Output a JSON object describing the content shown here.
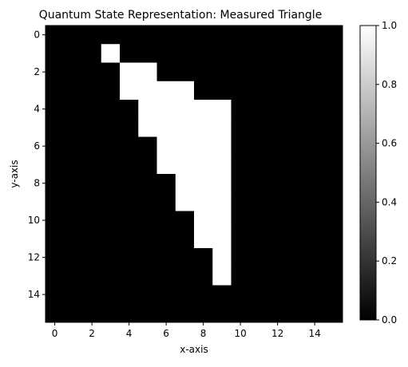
{
  "chart_data": {
    "type": "heatmap",
    "title": "Quantum State Representation: Measured Triangle",
    "xlabel": "x-axis",
    "ylabel": "y-axis",
    "colormap": "gray",
    "colors": {
      "low": "#000000",
      "high": "#ffffff"
    },
    "grid": false,
    "legend": "none",
    "rows": 16,
    "cols": 16,
    "xlim": [
      -0.5,
      15.5
    ],
    "ylim": [
      15.5,
      -0.5
    ],
    "x_ticks": [
      "0",
      "2",
      "4",
      "6",
      "8",
      "10",
      "12",
      "14"
    ],
    "y_ticks": [
      "0",
      "2",
      "4",
      "6",
      "8",
      "10",
      "12",
      "14"
    ],
    "colorbar": {
      "range": [
        0.0,
        1.0
      ],
      "ticks": [
        "0.0",
        "0.2",
        "0.4",
        "0.6",
        "0.8",
        "1.0"
      ]
    },
    "values": [
      [
        0,
        0,
        0,
        0,
        0,
        0,
        0,
        0,
        0,
        0,
        0,
        0,
        0,
        0,
        0,
        0
      ],
      [
        0,
        0,
        0,
        1,
        0,
        0,
        0,
        0,
        0,
        0,
        0,
        0,
        0,
        0,
        0,
        0
      ],
      [
        0,
        0,
        0,
        0,
        1,
        1,
        0,
        0,
        0,
        0,
        0,
        0,
        0,
        0,
        0,
        0
      ],
      [
        0,
        0,
        0,
        0,
        1,
        1,
        1,
        1,
        0,
        0,
        0,
        0,
        0,
        0,
        0,
        0
      ],
      [
        0,
        0,
        0,
        0,
        0,
        1,
        1,
        1,
        1,
        1,
        0,
        0,
        0,
        0,
        0,
        0
      ],
      [
        0,
        0,
        0,
        0,
        0,
        1,
        1,
        1,
        1,
        1,
        0,
        0,
        0,
        0,
        0,
        0
      ],
      [
        0,
        0,
        0,
        0,
        0,
        0,
        1,
        1,
        1,
        1,
        0,
        0,
        0,
        0,
        0,
        0
      ],
      [
        0,
        0,
        0,
        0,
        0,
        0,
        1,
        1,
        1,
        1,
        0,
        0,
        0,
        0,
        0,
        0
      ],
      [
        0,
        0,
        0,
        0,
        0,
        0,
        0,
        1,
        1,
        1,
        0,
        0,
        0,
        0,
        0,
        0
      ],
      [
        0,
        0,
        0,
        0,
        0,
        0,
        0,
        1,
        1,
        1,
        0,
        0,
        0,
        0,
        0,
        0
      ],
      [
        0,
        0,
        0,
        0,
        0,
        0,
        0,
        0,
        1,
        1,
        0,
        0,
        0,
        0,
        0,
        0
      ],
      [
        0,
        0,
        0,
        0,
        0,
        0,
        0,
        0,
        1,
        1,
        0,
        0,
        0,
        0,
        0,
        0
      ],
      [
        0,
        0,
        0,
        0,
        0,
        0,
        0,
        0,
        0,
        1,
        0,
        0,
        0,
        0,
        0,
        0
      ],
      [
        0,
        0,
        0,
        0,
        0,
        0,
        0,
        0,
        0,
        1,
        0,
        0,
        0,
        0,
        0,
        0
      ],
      [
        0,
        0,
        0,
        0,
        0,
        0,
        0,
        0,
        0,
        0,
        0,
        0,
        0,
        0,
        0,
        0
      ],
      [
        0,
        0,
        0,
        0,
        0,
        0,
        0,
        0,
        0,
        0,
        0,
        0,
        0,
        0,
        0,
        0
      ]
    ]
  }
}
